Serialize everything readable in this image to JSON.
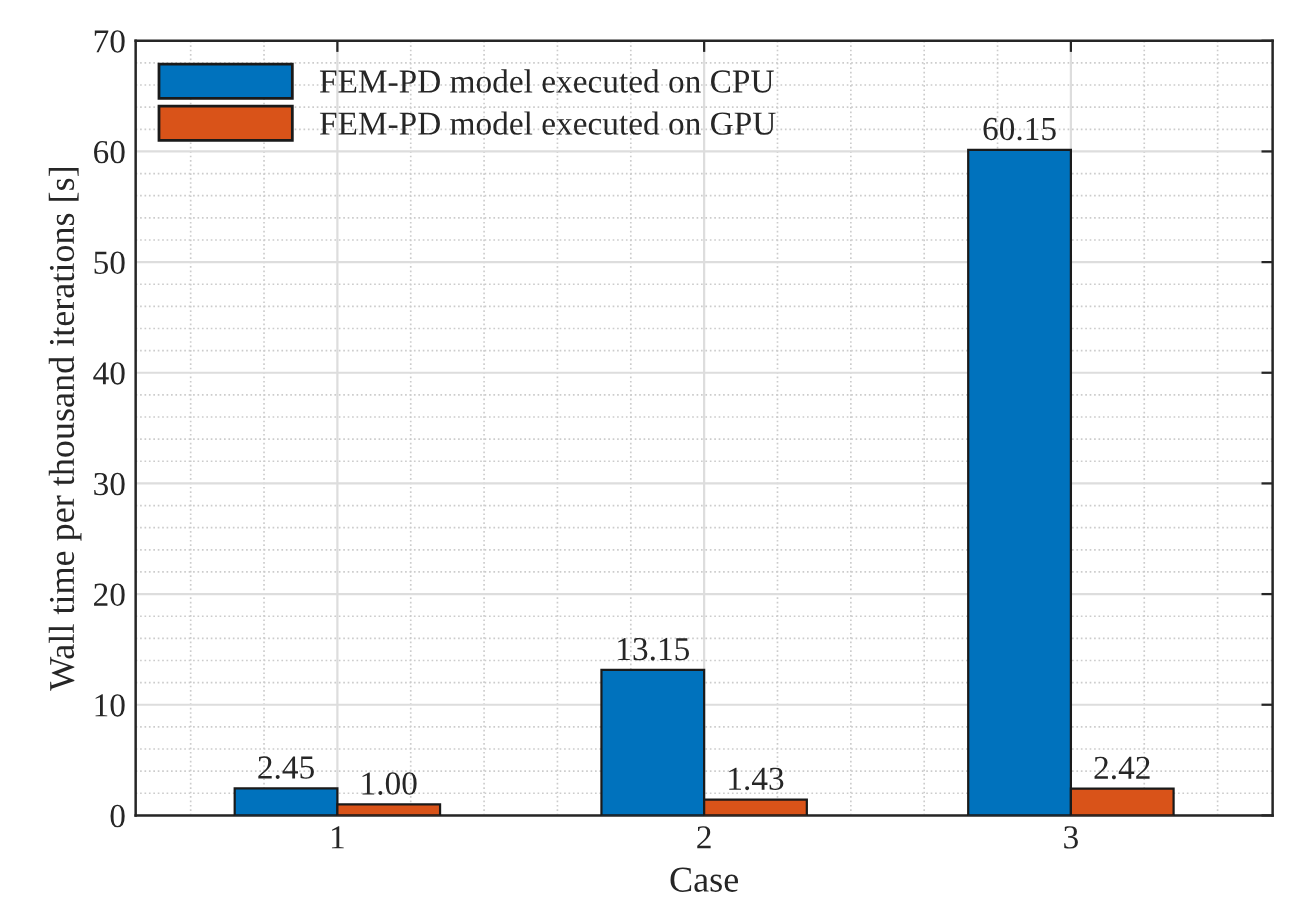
{
  "chart_data": {
    "type": "bar",
    "xlabel": "Case",
    "ylabel": "Wall time per thousand iterations [s]",
    "categories": [
      "1",
      "2",
      "3"
    ],
    "series": [
      {
        "name": "FEM-PD model executed on CPU",
        "color": "#0072bd",
        "values": [
          2.45,
          13.15,
          60.15
        ]
      },
      {
        "name": "FEM-PD model executed on GPU",
        "color": "#d95319",
        "values": [
          1.0,
          1.43,
          2.42
        ]
      }
    ],
    "value_labels": [
      [
        "2.45",
        "13.15",
        "60.15"
      ],
      [
        "1.00",
        "1.43",
        "2.42"
      ]
    ],
    "ylim": [
      0,
      70
    ],
    "yticks": [
      0,
      10,
      20,
      30,
      40,
      50,
      60,
      70
    ],
    "grid": true,
    "legend": "top left"
  }
}
